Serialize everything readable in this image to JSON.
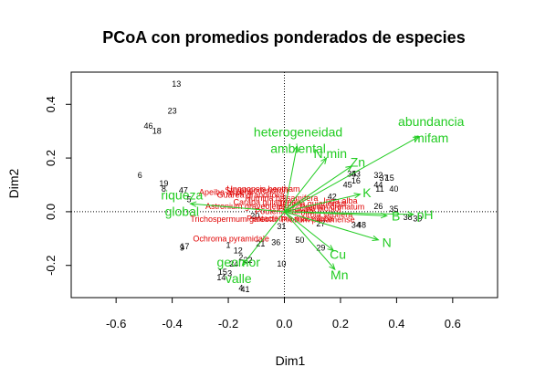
{
  "chart_data": {
    "type": "scatter",
    "title": "PCoA con promedios ponderados de especies",
    "xlabel": "Dim1",
    "ylabel": "Dim2",
    "xlim": [
      -0.76,
      0.76
    ],
    "ylim": [
      -0.32,
      0.52
    ],
    "xticks": [
      "-0.6",
      "-0.4",
      "-0.2",
      "0.0",
      "0.2",
      "0.4",
      "0.6"
    ],
    "yticks": [
      "-0.2",
      "0.0",
      "0.2",
      "0.4"
    ],
    "reference_lines": {
      "x": 0,
      "y": 0,
      "style": "dotted"
    },
    "colors": {
      "sites": "#000000",
      "species": "#e00000",
      "vectors": "#22cc22"
    },
    "sites": [
      {
        "label": "13",
        "x": -0.385,
        "y": 0.475
      },
      {
        "label": "23",
        "x": -0.4,
        "y": 0.375
      },
      {
        "label": "46",
        "x": -0.485,
        "y": 0.32
      },
      {
        "label": "18",
        "x": -0.455,
        "y": 0.3
      },
      {
        "label": "6",
        "x": -0.515,
        "y": 0.135
      },
      {
        "label": "19",
        "x": -0.43,
        "y": 0.105
      },
      {
        "label": "8",
        "x": -0.43,
        "y": 0.085
      },
      {
        "label": "47",
        "x": -0.36,
        "y": 0.08
      },
      {
        "label": "5",
        "x": -0.34,
        "y": 0.045
      },
      {
        "label": "42",
        "x": 0.17,
        "y": 0.055
      },
      {
        "label": "38",
        "x": 0.24,
        "y": 0.14
      },
      {
        "label": "43",
        "x": 0.255,
        "y": 0.14
      },
      {
        "label": "16",
        "x": 0.255,
        "y": 0.115
      },
      {
        "label": "45",
        "x": 0.225,
        "y": 0.1
      },
      {
        "label": "32",
        "x": 0.335,
        "y": 0.135
      },
      {
        "label": "37",
        "x": 0.355,
        "y": 0.125
      },
      {
        "label": "15",
        "x": 0.375,
        "y": 0.125
      },
      {
        "label": "44",
        "x": 0.335,
        "y": 0.1
      },
      {
        "label": "11",
        "x": 0.34,
        "y": 0.085
      },
      {
        "label": "40",
        "x": 0.39,
        "y": 0.085
      },
      {
        "label": "26",
        "x": 0.335,
        "y": 0.02
      },
      {
        "label": "35",
        "x": 0.39,
        "y": 0.01
      },
      {
        "label": "38",
        "x": 0.44,
        "y": -0.02
      },
      {
        "label": "39",
        "x": 0.475,
        "y": -0.025
      },
      {
        "label": "34",
        "x": 0.255,
        "y": -0.05
      },
      {
        "label": "48",
        "x": 0.275,
        "y": -0.05
      },
      {
        "label": "27",
        "x": 0.13,
        "y": -0.045
      },
      {
        "label": "31",
        "x": -0.01,
        "y": -0.055
      },
      {
        "label": "20",
        "x": -0.105,
        "y": -0.015
      },
      {
        "label": "50",
        "x": 0.055,
        "y": -0.105
      },
      {
        "label": "29",
        "x": 0.13,
        "y": -0.135
      },
      {
        "label": "36",
        "x": -0.03,
        "y": -0.115
      },
      {
        "label": "21",
        "x": -0.085,
        "y": -0.12
      },
      {
        "label": "1",
        "x": -0.2,
        "y": -0.125
      },
      {
        "label": "12",
        "x": -0.165,
        "y": -0.145
      },
      {
        "label": "9",
        "x": -0.365,
        "y": -0.135
      },
      {
        "label": "17",
        "x": -0.355,
        "y": -0.13
      },
      {
        "label": "2",
        "x": -0.155,
        "y": -0.17
      },
      {
        "label": "22",
        "x": -0.13,
        "y": -0.18
      },
      {
        "label": "24",
        "x": -0.18,
        "y": -0.195
      },
      {
        "label": "10",
        "x": -0.01,
        "y": -0.195
      },
      {
        "label": "15",
        "x": -0.22,
        "y": -0.225
      },
      {
        "label": "3",
        "x": -0.195,
        "y": -0.23
      },
      {
        "label": "14",
        "x": -0.225,
        "y": -0.245
      },
      {
        "label": "4",
        "x": -0.155,
        "y": -0.285
      },
      {
        "label": "41",
        "x": -0.14,
        "y": -0.29
      }
    ],
    "species": [
      {
        "label": "Stryphnodendron",
        "x": -0.1,
        "y": 0.08
      },
      {
        "label": "Unonopsis bentham",
        "x": -0.075,
        "y": 0.085
      },
      {
        "label": "Apeiba aspera",
        "x": -0.21,
        "y": 0.072
      },
      {
        "label": "Guarea grandifolia",
        "x": -0.12,
        "y": 0.062
      },
      {
        "label": "Humiria balsamifera",
        "x": -0.01,
        "y": 0.05
      },
      {
        "label": "Carapa guianensis",
        "x": -0.06,
        "y": 0.035
      },
      {
        "label": "Astronium graveolens",
        "x": -0.14,
        "y": 0.02
      },
      {
        "label": "Tapirira guianensis",
        "x": 0.1,
        "y": 0.03
      },
      {
        "label": "Inga alba",
        "x": 0.2,
        "y": 0.04
      },
      {
        "label": "Protium crenatum",
        "x": 0.17,
        "y": 0.018
      },
      {
        "label": "Pourouma bicolor",
        "x": 0.09,
        "y": 0.012
      },
      {
        "label": "Pouteria caimito",
        "x": 0.0,
        "y": 0.002
      },
      {
        "label": "Virola sebifera",
        "x": 0.15,
        "y": -0.01
      },
      {
        "label": "Trichospermum galeottii",
        "x": -0.18,
        "y": -0.028
      },
      {
        "label": "Pentaclethra macroloba",
        "x": 0.02,
        "y": -0.025
      },
      {
        "label": "Protium panamense",
        "x": 0.12,
        "y": -0.03
      },
      {
        "label": "Ochroma pyramidale",
        "x": -0.19,
        "y": -0.1
      }
    ],
    "vectors": [
      {
        "label": "abundancia\nmifam",
        "x": 0.48,
        "y": 0.28
      },
      {
        "label": "heterogeneidad\nambiental",
        "x": 0.045,
        "y": 0.245
      },
      {
        "label": "N.min",
        "x": 0.15,
        "y": 0.2
      },
      {
        "label": "Zn",
        "x": 0.24,
        "y": 0.17
      },
      {
        "label": "K",
        "x": 0.27,
        "y": 0.065
      },
      {
        "label": "B",
        "x": 0.365,
        "y": -0.015
      },
      {
        "label": "pH",
        "x": 0.46,
        "y": -0.01
      },
      {
        "label": "N",
        "x": 0.335,
        "y": -0.105
      },
      {
        "label": "Cu",
        "x": 0.175,
        "y": -0.145
      },
      {
        "label": "Mn",
        "x": 0.18,
        "y": -0.215
      },
      {
        "label": "riqueza\nglobal",
        "x": -0.335,
        "y": 0.03
      },
      {
        "label": "geomor\nvalle",
        "x": -0.15,
        "y": -0.2
      }
    ]
  }
}
